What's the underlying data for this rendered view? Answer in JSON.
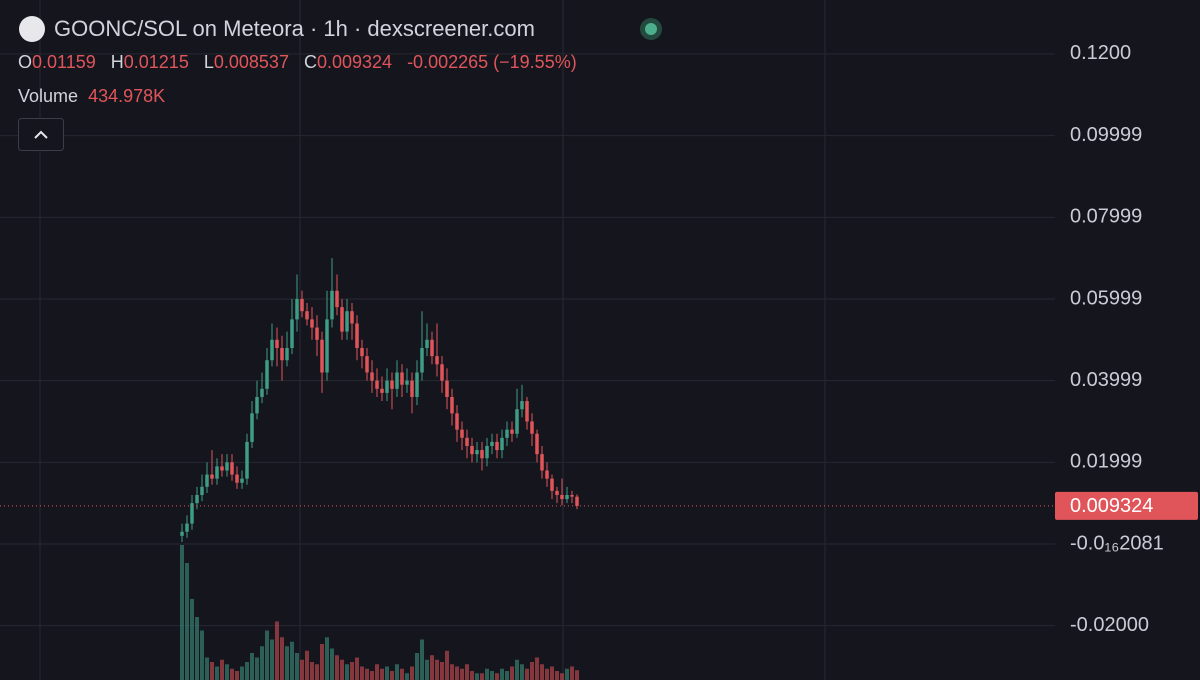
{
  "header": {
    "title": "GOONC/SOL on Meteora · 1h · dexscreener.com",
    "ohlc": [
      {
        "label": "O",
        "value": 0.01159
      },
      {
        "label": "H",
        "value": 0.01215
      },
      {
        "label": "L",
        "value": 0.008537
      },
      {
        "label": "C",
        "value": 0.009324
      }
    ],
    "change": -0.002265,
    "change_percent": {
      "value": -19.55,
      "label": "(−19.55%)"
    },
    "volume_label": "Volume",
    "volume": {
      "value": 434978,
      "label": "434.978K"
    }
  },
  "chart_data": {
    "type": "candlestick",
    "open": [
      0.002,
      0.003,
      0.005,
      0.01,
      0.012,
      0.014,
      0.017,
      0.016,
      0.019,
      0.018,
      0.02,
      0.017,
      0.015,
      0.016,
      0.025,
      0.032,
      0.036,
      0.038,
      0.045,
      0.05,
      0.048,
      0.045,
      0.048,
      0.055,
      0.06,
      0.057,
      0.055,
      0.053,
      0.05,
      0.042,
      0.055,
      0.062,
      0.058,
      0.052,
      0.057,
      0.054,
      0.048,
      0.046,
      0.042,
      0.04,
      0.038,
      0.037,
      0.04,
      0.038,
      0.042,
      0.039,
      0.04,
      0.036,
      0.042,
      0.048,
      0.05,
      0.046,
      0.044,
      0.04,
      0.036,
      0.032,
      0.028,
      0.026,
      0.024,
      0.022,
      0.023,
      0.021,
      0.024,
      0.025,
      0.023,
      0.026,
      0.028,
      0.027,
      0.033,
      0.035,
      0.03,
      0.027,
      0.022,
      0.018,
      0.016,
      0.013,
      0.012,
      0.011,
      0.012,
      0.01159
    ],
    "high": [
      0.005,
      0.007,
      0.012,
      0.014,
      0.017,
      0.02,
      0.023,
      0.021,
      0.022,
      0.022,
      0.022,
      0.019,
      0.018,
      0.027,
      0.035,
      0.04,
      0.042,
      0.048,
      0.054,
      0.053,
      0.051,
      0.052,
      0.06,
      0.066,
      0.062,
      0.059,
      0.058,
      0.056,
      0.052,
      0.062,
      0.07,
      0.066,
      0.06,
      0.06,
      0.059,
      0.056,
      0.05,
      0.048,
      0.045,
      0.043,
      0.041,
      0.043,
      0.042,
      0.045,
      0.044,
      0.043,
      0.042,
      0.045,
      0.057,
      0.054,
      0.052,
      0.054,
      0.046,
      0.043,
      0.038,
      0.034,
      0.03,
      0.028,
      0.026,
      0.025,
      0.025,
      0.026,
      0.027,
      0.027,
      0.028,
      0.03,
      0.03,
      0.038,
      0.039,
      0.036,
      0.032,
      0.028,
      0.024,
      0.02,
      0.017,
      0.014,
      0.016,
      0.014,
      0.013,
      0.01215
    ],
    "low": [
      0.0005,
      0.0015,
      0.0035,
      0.0085,
      0.0105,
      0.0125,
      0.0145,
      0.0145,
      0.0165,
      0.0165,
      0.0155,
      0.0135,
      0.0135,
      0.0145,
      0.0235,
      0.0305,
      0.0345,
      0.0365,
      0.0435,
      0.0435,
      0.04,
      0.0435,
      0.0465,
      0.052,
      0.0555,
      0.0535,
      0.05,
      0.046,
      0.037,
      0.04,
      0.053,
      0.056,
      0.05,
      0.05,
      0.05,
      0.045,
      0.043,
      0.04,
      0.037,
      0.036,
      0.035,
      0.035,
      0.033,
      0.036,
      0.036,
      0.037,
      0.032,
      0.034,
      0.04,
      0.046,
      0.044,
      0.041,
      0.037,
      0.033,
      0.029,
      0.025,
      0.023,
      0.021,
      0.02,
      0.02,
      0.018,
      0.019,
      0.022,
      0.021,
      0.021,
      0.024,
      0.025,
      0.026,
      0.031,
      0.028,
      0.024,
      0.02,
      0.016,
      0.014,
      0.011,
      0.01,
      0.0095,
      0.01,
      0.01,
      0.008537
    ],
    "close": [
      0.003,
      0.005,
      0.01,
      0.012,
      0.014,
      0.017,
      0.016,
      0.019,
      0.018,
      0.02,
      0.017,
      0.015,
      0.016,
      0.025,
      0.032,
      0.036,
      0.038,
      0.045,
      0.05,
      0.048,
      0.045,
      0.048,
      0.055,
      0.06,
      0.057,
      0.055,
      0.053,
      0.05,
      0.042,
      0.055,
      0.062,
      0.058,
      0.052,
      0.057,
      0.054,
      0.048,
      0.046,
      0.042,
      0.04,
      0.038,
      0.037,
      0.04,
      0.038,
      0.042,
      0.039,
      0.04,
      0.036,
      0.042,
      0.048,
      0.05,
      0.046,
      0.044,
      0.04,
      0.036,
      0.032,
      0.028,
      0.026,
      0.024,
      0.022,
      0.023,
      0.021,
      0.024,
      0.025,
      0.023,
      0.026,
      0.028,
      0.027,
      0.033,
      0.035,
      0.03,
      0.027,
      0.022,
      0.018,
      0.016,
      0.013,
      0.012,
      0.011,
      0.012,
      0.01159,
      0.009324
    ],
    "volume": [
      6000000,
      5200000,
      3600000,
      2800000,
      2200000,
      1000000,
      800000,
      600000,
      900000,
      700000,
      500000,
      400000,
      600000,
      800000,
      1200000,
      1000000,
      1500000,
      2200000,
      1800000,
      2600000,
      1900000,
      1500000,
      1700000,
      1200000,
      900000,
      1300000,
      800000,
      700000,
      1600000,
      1900000,
      1400000,
      1100000,
      900000,
      700000,
      800000,
      1000000,
      600000,
      500000,
      400000,
      700000,
      500000,
      600000,
      400000,
      700000,
      500000,
      300000,
      600000,
      1200000,
      1800000,
      900000,
      1100000,
      900000,
      800000,
      1300000,
      700000,
      600000,
      500000,
      700000,
      400000,
      300000,
      300000,
      500000,
      400000,
      300000,
      500000,
      400000,
      600000,
      900000,
      700000,
      500000,
      800000,
      1000000,
      700000,
      500000,
      600000,
      400000,
      300000,
      500000,
      600000,
      434978
    ],
    "volume_ylim": [
      0,
      6000000
    ],
    "up_color": "#3f9c85",
    "down_color": "#e0555a",
    "ylim": [
      -0.0333,
      0.1332
    ],
    "yticks": [
      {
        "value": 0.12,
        "label": "0.1200"
      },
      0.09999,
      0.07999,
      0.05999,
      0.03999,
      0.01999,
      {
        "value": -2.081e-17,
        "label": "-0.0₁₆2081"
      },
      {
        "value": -0.02,
        "label": "-0.02000"
      }
    ],
    "grid": true
  }
}
